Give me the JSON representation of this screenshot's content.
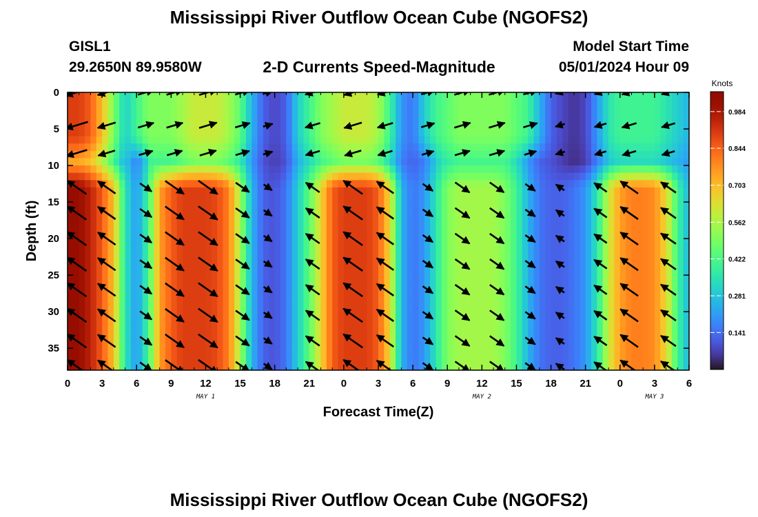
{
  "header": {
    "title": "Mississippi River Outflow Ocean Cube (NGOFS2)",
    "station": "GISL1",
    "coords": "29.2650N  89.9580W",
    "subtitle": "2-D Currents Speed-Magnitude",
    "model_start_label": "Model Start Time",
    "model_start_value": "05/01/2024 Hour 09"
  },
  "footer": {
    "title": "Mississippi River Outflow Ocean Cube (NGOFS2)"
  },
  "colors": {
    "background": "#ffffff",
    "colormap": "turbo",
    "arrow": "#000000"
  },
  "chart_data": {
    "type": "heatmap",
    "xlabel": "Forecast Time(Z)",
    "ylabel": "Depth (ft)",
    "colorbar_label": "Knots",
    "x_tick_labels": [
      "0",
      "3",
      "6",
      "9",
      "12",
      "15",
      "18",
      "21",
      "0",
      "3",
      "6",
      "9",
      "12",
      "15",
      "18",
      "21",
      "0",
      "3",
      "6"
    ],
    "x_tick_hours": [
      0,
      3,
      6,
      9,
      12,
      15,
      18,
      21,
      24,
      27,
      30,
      33,
      36,
      39,
      42,
      45,
      48,
      51,
      54
    ],
    "day_labels": [
      {
        "text": "MAY 1",
        "hour": 12
      },
      {
        "text": "MAY 2",
        "hour": 36
      },
      {
        "text": "MAY 3",
        "hour": 51
      }
    ],
    "y_ticks": [
      0,
      5,
      10,
      15,
      20,
      25,
      30,
      35
    ],
    "ylim": [
      0,
      38
    ],
    "xlim": [
      0,
      54
    ],
    "y_inverted": true,
    "colorbar_ticks": [
      "0.984",
      "0.844",
      "0.703",
      "0.562",
      "0.422",
      "0.281",
      "0.141"
    ],
    "colorbar_tick_values": [
      0.984,
      0.844,
      0.703,
      0.562,
      0.422,
      0.281,
      0.141
    ],
    "speed_range": [
      0.0,
      1.06
    ],
    "hours": [
      0,
      1,
      2,
      3,
      4,
      5,
      6,
      7,
      8,
      9,
      10,
      11,
      12,
      13,
      14,
      15,
      16,
      17,
      18,
      19,
      20,
      21,
      22,
      23,
      24,
      25,
      26,
      27,
      28,
      29,
      30,
      31,
      32,
      33,
      34,
      35,
      36,
      37,
      38,
      39,
      40,
      41,
      42,
      43,
      44,
      45,
      46,
      47,
      48,
      49,
      50,
      51,
      52,
      53,
      54
    ],
    "surface_speed": [
      0.9,
      0.9,
      0.85,
      0.7,
      0.5,
      0.3,
      0.4,
      0.5,
      0.5,
      0.5,
      0.55,
      0.6,
      0.6,
      0.6,
      0.55,
      0.45,
      0.25,
      0.12,
      0.08,
      0.12,
      0.3,
      0.4,
      0.5,
      0.55,
      0.6,
      0.6,
      0.6,
      0.55,
      0.4,
      0.2,
      0.15,
      0.3,
      0.4,
      0.45,
      0.5,
      0.5,
      0.5,
      0.5,
      0.5,
      0.45,
      0.4,
      0.25,
      0.12,
      0.08,
      0.05,
      0.08,
      0.2,
      0.35,
      0.4,
      0.4,
      0.4,
      0.4,
      0.35,
      0.3,
      0.25
    ],
    "deep_speed": [
      1.02,
      1.02,
      0.95,
      0.85,
      0.7,
      0.35,
      0.2,
      0.4,
      0.75,
      0.85,
      0.9,
      0.9,
      0.9,
      0.88,
      0.8,
      0.55,
      0.25,
      0.12,
      0.1,
      0.15,
      0.3,
      0.45,
      0.65,
      0.85,
      0.9,
      0.9,
      0.9,
      0.85,
      0.65,
      0.25,
      0.15,
      0.2,
      0.35,
      0.5,
      0.55,
      0.55,
      0.55,
      0.55,
      0.5,
      0.4,
      0.25,
      0.15,
      0.12,
      0.12,
      0.15,
      0.2,
      0.35,
      0.6,
      0.75,
      0.8,
      0.8,
      0.78,
      0.65,
      0.4,
      0.25
    ],
    "arrow_depths": [
      0,
      4.5,
      8.3,
      13,
      16.5,
      20,
      23.5,
      27,
      30.5,
      34,
      37.5
    ],
    "arrow_hours": [
      0.8,
      3.4,
      6.8,
      9.3,
      12.2,
      15.2,
      17.4,
      21.3,
      24.8,
      27.6,
      31.3,
      34.3,
      37.3,
      40.2,
      42.8,
      46.3,
      48.8,
      52.2
    ]
  }
}
